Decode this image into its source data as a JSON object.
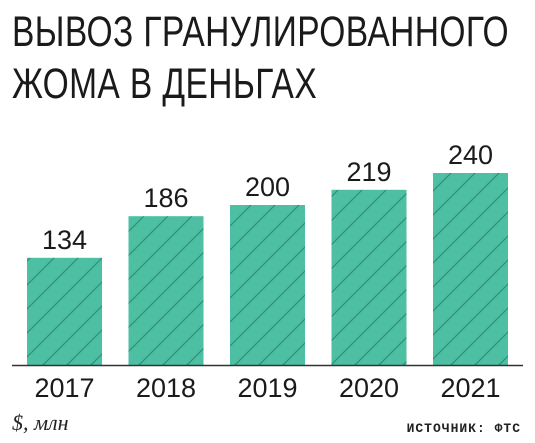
{
  "title_lines": [
    "ВЫВОЗ ГРАНУЛИРОВАННОГО",
    "ЖОМА В ДЕНЬГАХ"
  ],
  "unit_label": "$, млн",
  "source_label": "ИСТОЧНИК: ФТС",
  "colors": {
    "bar_fill": "#4dbfa3",
    "bar_hatch": "#2f8f78",
    "text": "#1a1a1a",
    "axis": "#333333"
  },
  "chart_data": {
    "type": "bar",
    "categories": [
      "2017",
      "2018",
      "2019",
      "2020",
      "2021"
    ],
    "values": [
      134,
      186,
      200,
      219,
      240
    ],
    "title": "ВЫВОЗ ГРАНУЛИРОВАННОГО ЖОМА В ДЕНЬГАХ",
    "xlabel": "",
    "ylabel": "$, млн",
    "ylim": [
      0,
      250
    ],
    "grid": false,
    "legend": "none"
  }
}
